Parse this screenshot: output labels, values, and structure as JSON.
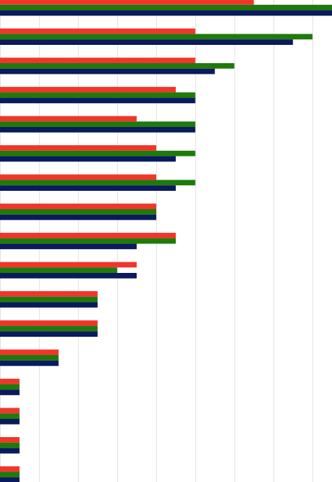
{
  "chart_data": {
    "type": "bar",
    "orientation": "horizontal",
    "categories": [
      null,
      null,
      null,
      null,
      null,
      null,
      null,
      null,
      null,
      null,
      null,
      null,
      null,
      null,
      null,
      null,
      null
    ],
    "series": [
      {
        "color": "#f2352a",
        "values": [
          13,
          10,
          10,
          9,
          7,
          8,
          8,
          8,
          9,
          7,
          5,
          5,
          3,
          1,
          1,
          1,
          1
        ]
      },
      {
        "color": "#1f7a0c",
        "values": [
          17,
          16,
          12,
          10,
          10,
          10,
          10,
          8,
          9,
          6,
          5,
          5,
          3,
          1,
          1,
          1,
          1
        ]
      },
      {
        "color": "#0b1a5c",
        "values": [
          17,
          15,
          11,
          10,
          10,
          9,
          9,
          8,
          7,
          7,
          5,
          5,
          3,
          1,
          1,
          1,
          1
        ]
      }
    ],
    "xlim": [
      0,
      17
    ],
    "xticks": [
      0,
      2,
      4,
      6,
      8,
      10,
      12,
      14,
      16
    ],
    "grid": true
  }
}
